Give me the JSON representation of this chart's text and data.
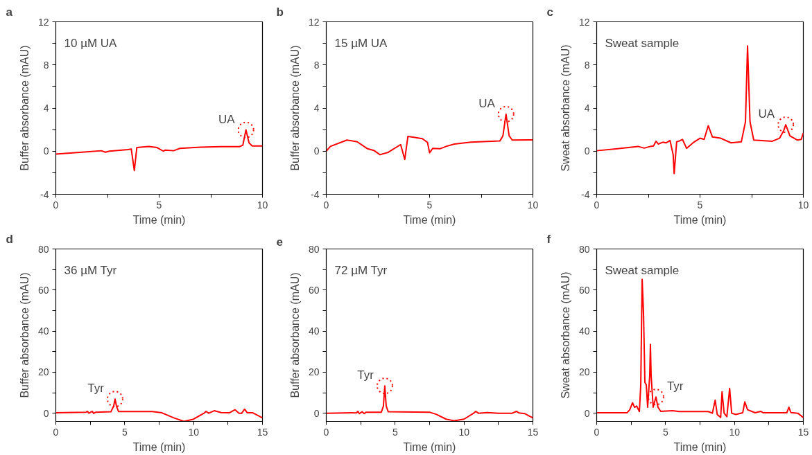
{
  "chart_data": [
    {
      "type": "line",
      "annotations": [
        "a",
        "10 µM UA",
        {
          "text": "UA",
          "x": 9.2,
          "y": 1.97
        }
      ],
      "xlabel": "Time (min)",
      "ylabel": "Buffer absorbance (mAU)",
      "xlim": [
        0,
        10
      ],
      "ylim": [
        -4,
        12
      ],
      "xticks": [
        0,
        {
          "value": 2.5,
          "label": null
        },
        5,
        {
          "value": 7.5,
          "label": null
        },
        10
      ],
      "yticks": [
        -4,
        {
          "value": -2,
          "label": null
        },
        0,
        {
          "value": 2,
          "label": null
        },
        4,
        {
          "value": 6,
          "label": null
        },
        8,
        {
          "value": 10,
          "label": null
        },
        12
      ],
      "grid": false,
      "marker": "none",
      "line_style": "solid",
      "series": [
        {
          "color": "#ff0000",
          "x": [
            0,
            1.5,
            2.2,
            2.4,
            2.6,
            3.5,
            3.65,
            3.8,
            3.92,
            4.5,
            4.9,
            5.2,
            5.3,
            5.7,
            6,
            7,
            8,
            8.9,
            9.05,
            9.2,
            9.35,
            9.5,
            10
          ],
          "values": [
            -0.28,
            -0.07,
            0.04,
            -0.1,
            0,
            0.15,
            0.2,
            -1.8,
            0.33,
            0.44,
            0.33,
            0,
            0.1,
            0.04,
            0.26,
            0.37,
            0.42,
            0.42,
            0.55,
            1.97,
            0.77,
            0.48,
            0.48
          ]
        }
      ]
    },
    {
      "type": "line",
      "annotations": [
        "b",
        "15 µM UA",
        {
          "text": "UA",
          "x": 8.7,
          "y": 3.43
        }
      ],
      "xlabel": "Time (min)",
      "ylabel": "Buffer absorbance (mAU)",
      "xlim": [
        0,
        10
      ],
      "ylim": [
        -4,
        12
      ],
      "xticks": [
        0,
        {
          "value": 2.5,
          "label": null
        },
        5,
        {
          "value": 7.5,
          "label": null
        },
        10
      ],
      "yticks": [
        -4,
        {
          "value": -2,
          "label": null
        },
        0,
        {
          "value": 2,
          "label": null
        },
        4,
        {
          "value": 6,
          "label": null
        },
        8,
        {
          "value": 10,
          "label": null
        },
        12
      ],
      "grid": false,
      "marker": "none",
      "line_style": "solid",
      "series": [
        {
          "color": "#ff0000",
          "x": [
            0,
            0.2,
            1.0,
            1.5,
            2.0,
            2.3,
            2.6,
            3.0,
            3.6,
            3.8,
            3.95,
            4.3,
            4.65,
            4.9,
            5.0,
            5.15,
            5.5,
            5.8,
            6.2,
            7,
            8.4,
            8.55,
            8.7,
            8.85,
            9.0,
            10
          ],
          "values": [
            0,
            0.44,
            1.03,
            0.87,
            0.22,
            0.07,
            -0.33,
            -0.11,
            0.61,
            -0.77,
            1.36,
            1.27,
            1.16,
            0.81,
            -0.15,
            0.26,
            0.22,
            0.44,
            0.66,
            0.83,
            0.94,
            1.42,
            3.43,
            1.42,
            1.03,
            1.05
          ]
        }
      ]
    },
    {
      "type": "line",
      "annotations": [
        "c",
        "Sweat sample",
        {
          "text": "UA",
          "x": 9.15,
          "y": 2.45
        }
      ],
      "xlabel": "Time (min)",
      "ylabel": "Sweat absorbance (mAU)",
      "xlim": [
        0,
        10
      ],
      "ylim": [
        -4,
        12
      ],
      "xticks": [
        0,
        {
          "value": 2.5,
          "label": null
        },
        5,
        {
          "value": 7.5,
          "label": null
        },
        10
      ],
      "yticks": [
        -4,
        {
          "value": -2,
          "label": null
        },
        0,
        {
          "value": 2,
          "label": null
        },
        4,
        {
          "value": 6,
          "label": null
        },
        8,
        {
          "value": 10,
          "label": null
        },
        12
      ],
      "grid": false,
      "marker": "none",
      "line_style": "solid",
      "series": [
        {
          "color": "#ff0000",
          "x": [
            0,
            1,
            2,
            2.3,
            2.6,
            2.75,
            2.87,
            2.98,
            3.2,
            3.35,
            3.55,
            3.7,
            3.75,
            3.87,
            4.0,
            4.15,
            4.35,
            4.7,
            5.0,
            5.2,
            5.4,
            5.6,
            6.0,
            6.5,
            7.0,
            7.2,
            7.3,
            7.42,
            7.6,
            8.5,
            8.85,
            9.05,
            9.15,
            9.35,
            9.7,
            9.9,
            10
          ],
          "values": [
            0.04,
            0.22,
            0.44,
            0.28,
            0.44,
            0.48,
            0.92,
            0.66,
            0.83,
            0.77,
            0.98,
            -0.33,
            -2.08,
            0.87,
            0.94,
            1.09,
            0.26,
            0.83,
            1.2,
            1.09,
            2.36,
            1.31,
            1.2,
            0.77,
            0.87,
            2.73,
            9.77,
            2.73,
            1.03,
            0.92,
            1.2,
            1.9,
            2.45,
            1.42,
            1.03,
            1.09,
            1.7
          ]
        }
      ]
    },
    {
      "type": "line",
      "annotations": [
        "d",
        "36 µM Tyr",
        {
          "text": "Tyr",
          "x": 4.3,
          "y": 6.9
        }
      ],
      "xlabel": "Time (min)",
      "ylabel": "Buffer absorbance (mAU)",
      "xlim": [
        0,
        15
      ],
      "ylim": [
        -4,
        80
      ],
      "xticks": [
        0,
        {
          "value": 2.5,
          "label": null
        },
        5,
        {
          "value": 7.5,
          "label": null
        },
        10,
        {
          "value": 12.5,
          "label": null
        },
        15
      ],
      "yticks": [
        0,
        {
          "value": 10,
          "label": null
        },
        20,
        {
          "value": 30,
          "label": null
        },
        40,
        {
          "value": 50,
          "label": null
        },
        60,
        {
          "value": 70,
          "label": null
        },
        80
      ],
      "grid": false,
      "marker": "none",
      "line_style": "solid",
      "series": [
        {
          "color": "#ff0000",
          "x": [
            0,
            2.2,
            2.3,
            2.4,
            2.65,
            2.75,
            2.9,
            4.0,
            4.2,
            4.3,
            4.4,
            4.55,
            7,
            7.7,
            8.5,
            9.3,
            10,
            10.8,
            10.9,
            11.1,
            11.5,
            12,
            12.6,
            13.0,
            13.3,
            13.5,
            13.7,
            13.9,
            14.3,
            15
          ],
          "values": [
            0.2,
            0.5,
            0.9,
            0,
            0.9,
            -0.1,
            0.5,
            0.7,
            3.5,
            6.9,
            3.5,
            0.8,
            0.8,
            0.2,
            -2.1,
            -4.0,
            -2.9,
            0.2,
            0.9,
            0,
            1.2,
            0.3,
            0.2,
            1.7,
            0,
            0,
            2.0,
            0.2,
            0.2,
            -2.3
          ]
        }
      ]
    },
    {
      "type": "line",
      "annotations": [
        "e",
        "72 µM Tyr",
        {
          "text": "Tyr",
          "x": 4.25,
          "y": 13.3
        }
      ],
      "xlabel": "Time (min)",
      "ylabel": "Buffer absorbance (mAU)",
      "xlim": [
        0,
        15
      ],
      "ylim": [
        -4,
        80
      ],
      "xticks": [
        0,
        {
          "value": 2.5,
          "label": null
        },
        5,
        {
          "value": 7.5,
          "label": null
        },
        10,
        {
          "value": 12.5,
          "label": null
        },
        15
      ],
      "yticks": [
        0,
        {
          "value": 10,
          "label": null
        },
        20,
        {
          "value": 30,
          "label": null
        },
        40,
        {
          "value": 50,
          "label": null
        },
        60,
        {
          "value": 70,
          "label": null
        },
        80
      ],
      "grid": false,
      "marker": "none",
      "line_style": "solid",
      "series": [
        {
          "color": "#ff0000",
          "x": [
            0,
            2.2,
            2.3,
            2.4,
            2.6,
            2.75,
            2.9,
            4.0,
            4.15,
            4.25,
            4.35,
            4.5,
            7.5,
            8.0,
            8.7,
            9.3,
            10,
            10.7,
            10.85,
            11.05,
            11.7,
            12.5,
            13.5,
            13.8,
            14.0,
            14.4,
            15
          ],
          "values": [
            0,
            0.2,
            0.9,
            -0.2,
            0.7,
            -0.2,
            0.5,
            0.5,
            3.5,
            13.3,
            3.5,
            0.7,
            0.5,
            -0.6,
            -2.9,
            -3.7,
            -2.9,
            0,
            0.9,
            0,
            0.3,
            0,
            0,
            0.9,
            0.1,
            -0.2,
            -2.3
          ]
        }
      ]
    },
    {
      "type": "line",
      "annotations": [
        "f",
        "Sweat sample",
        {
          "text": "Tyr",
          "x": 4.3,
          "y": 7.9
        }
      ],
      "xlabel": "Time (min)",
      "ylabel": "Sweat absorbance (mAU)",
      "xlim": [
        0,
        15
      ],
      "ylim": [
        -4,
        80
      ],
      "xticks": [
        0,
        {
          "value": 2.5,
          "label": null
        },
        5,
        {
          "value": 7.5,
          "label": null
        },
        10,
        {
          "value": 12.5,
          "label": null
        },
        15
      ],
      "yticks": [
        0,
        {
          "value": 10,
          "label": null
        },
        20,
        {
          "value": 30,
          "label": null
        },
        40,
        {
          "value": 50,
          "label": null
        },
        60,
        {
          "value": 70,
          "label": null
        },
        80
      ],
      "grid": false,
      "marker": "none",
      "line_style": "solid",
      "series": [
        {
          "color": "#ff0000",
          "x": [
            0,
            2.2,
            2.4,
            2.6,
            2.75,
            2.9,
            3.1,
            3.2,
            3.3,
            3.4,
            3.5,
            3.6,
            3.7,
            3.85,
            3.9,
            3.95,
            4.1,
            4.3,
            4.45,
            4.65,
            5.5,
            6.0,
            8.1,
            8.4,
            8.6,
            8.75,
            9.0,
            9.1,
            9.25,
            9.45,
            9.65,
            9.8,
            10.1,
            10.6,
            10.75,
            10.95,
            11.5,
            11.9,
            12.1,
            13.6,
            13.8,
            13.95,
            14.1,
            14.6,
            15
          ],
          "values": [
            0.2,
            0.2,
            1.7,
            5.1,
            2.9,
            3.5,
            0.8,
            13.9,
            65.2,
            48.5,
            15.0,
            13.9,
            2.9,
            18.5,
            33.5,
            18.5,
            2.9,
            7.9,
            2.9,
            0.9,
            1.2,
            0.8,
            0.8,
            0,
            6.4,
            -0.6,
            -2.1,
            10.4,
            0,
            -1.7,
            12.1,
            0,
            -0.6,
            0.2,
            5.5,
            1.7,
            0.2,
            0.9,
            0.2,
            0.2,
            0.2,
            2.9,
            0.3,
            0,
            -2.1
          ]
        }
      ]
    }
  ]
}
